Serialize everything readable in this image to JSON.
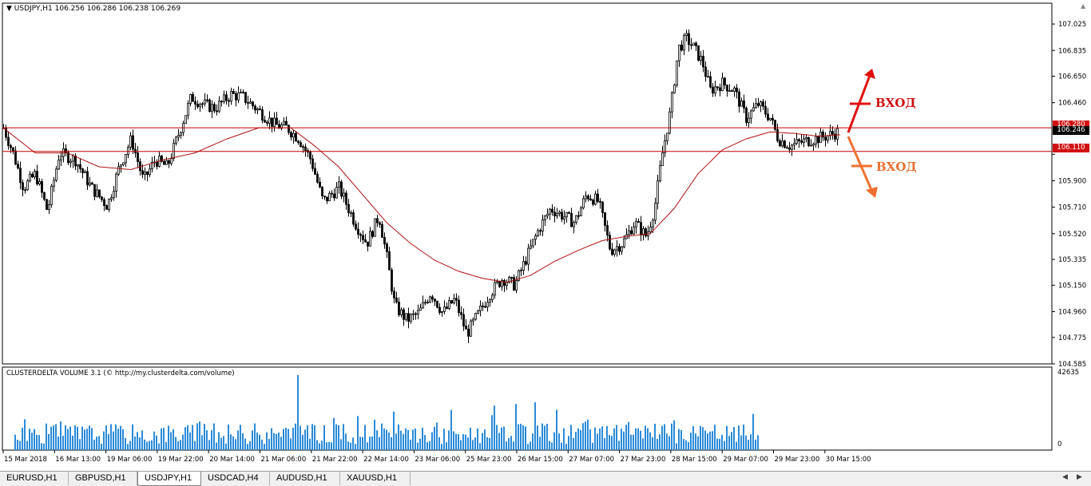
{
  "header": {
    "symbol_line": "USDJPY,H1  106.256 106.286 106.238 106.269"
  },
  "indicator": {
    "title": "CLUSTERDELTA VOLUME 3.1 (© http://my.clusterdelta.com/volume)",
    "max_label": "42635",
    "zero_label": "0"
  },
  "levels": {
    "upper": "106.280",
    "current": "106.246",
    "lower": "106.110"
  },
  "annotations": {
    "up_label": "ВХОД",
    "down_label": "ВХОД",
    "up_color": "#e01010",
    "down_color": "#f07030"
  },
  "tabs": [
    {
      "label": "EURUSD,H1",
      "active": false
    },
    {
      "label": "GBPUSD,H1",
      "active": false
    },
    {
      "label": "USDJPY,H1",
      "active": true
    },
    {
      "label": "USDCAD,H4",
      "active": false
    },
    {
      "label": "AUDUSD,H1",
      "active": false
    },
    {
      "label": "XAUUSD,H1",
      "active": false
    }
  ],
  "colors": {
    "level_line": "#c00000",
    "ma_line": "#b01010",
    "volume_bar": "#2a8ad8",
    "candle": "#000000"
  },
  "chart_data": {
    "type": "candlestick",
    "symbol": "USDJPY",
    "timeframe": "H1",
    "price_axis_labels": [
      "107.025",
      "106.835",
      "106.650",
      "106.460",
      "106.280",
      "106.246",
      "106.110",
      "105.900",
      "105.710",
      "105.520",
      "105.335",
      "105.150",
      "104.960",
      "104.775",
      "104.585"
    ],
    "price_axis_ticks": [
      107.025,
      106.835,
      106.65,
      106.46,
      106.09,
      105.9,
      105.71,
      105.52,
      105.335,
      105.15,
      104.96,
      104.775,
      104.585
    ],
    "ylim": [
      104.585,
      107.1
    ],
    "time_axis_labels": [
      "15 Mar 2018",
      "16 Mar 13:00",
      "19 Mar 06:00",
      "19 Mar 22:00",
      "20 Mar 14:00",
      "21 Mar 06:00",
      "21 Mar 22:00",
      "22 Mar 14:00",
      "23 Mar 06:00",
      "25 Mar 23:00",
      "26 Mar 15:00",
      "27 Mar 07:00",
      "27 Mar 23:00",
      "28 Mar 15:00",
      "29 Mar 07:00",
      "29 Mar 23:00",
      "30 Mar 15:00"
    ],
    "price_path": [
      [
        0,
        106.28
      ],
      [
        12,
        106.1
      ],
      [
        25,
        105.85
      ],
      [
        40,
        105.95
      ],
      [
        55,
        105.68
      ],
      [
        70,
        106.1
      ],
      [
        90,
        106.05
      ],
      [
        110,
        105.85
      ],
      [
        130,
        105.72
      ],
      [
        145,
        106.0
      ],
      [
        160,
        106.2
      ],
      [
        175,
        105.9
      ],
      [
        190,
        106.05
      ],
      [
        205,
        106.0
      ],
      [
        220,
        106.25
      ],
      [
        235,
        106.5
      ],
      [
        250,
        106.45
      ],
      [
        265,
        106.42
      ],
      [
        285,
        106.52
      ],
      [
        300,
        106.5
      ],
      [
        320,
        106.4
      ],
      [
        340,
        106.3
      ],
      [
        355,
        106.28
      ],
      [
        370,
        106.2
      ],
      [
        385,
        106.05
      ],
      [
        400,
        105.75
      ],
      [
        420,
        105.85
      ],
      [
        440,
        105.6
      ],
      [
        455,
        105.45
      ],
      [
        470,
        105.65
      ],
      [
        480,
        105.35
      ],
      [
        490,
        105.0
      ],
      [
        505,
        104.9
      ],
      [
        520,
        104.95
      ],
      [
        535,
        105.1
      ],
      [
        550,
        104.95
      ],
      [
        565,
        105.05
      ],
      [
        580,
        104.8
      ],
      [
        595,
        104.95
      ],
      [
        610,
        105.1
      ],
      [
        625,
        105.2
      ],
      [
        640,
        105.15
      ],
      [
        655,
        105.35
      ],
      [
        670,
        105.55
      ],
      [
        685,
        105.7
      ],
      [
        700,
        105.65
      ],
      [
        715,
        105.6
      ],
      [
        730,
        105.8
      ],
      [
        745,
        105.75
      ],
      [
        760,
        105.4
      ],
      [
        775,
        105.45
      ],
      [
        790,
        105.6
      ],
      [
        805,
        105.5
      ],
      [
        815,
        105.7
      ],
      [
        825,
        106.1
      ],
      [
        835,
        106.4
      ],
      [
        845,
        106.85
      ],
      [
        855,
        106.92
      ],
      [
        865,
        106.85
      ],
      [
        875,
        106.75
      ],
      [
        885,
        106.55
      ],
      [
        900,
        106.6
      ],
      [
        915,
        106.55
      ],
      [
        930,
        106.35
      ],
      [
        945,
        106.45
      ],
      [
        960,
        106.35
      ],
      [
        970,
        106.2
      ],
      [
        985,
        106.15
      ],
      [
        1000,
        106.18
      ],
      [
        1015,
        106.2
      ],
      [
        1030,
        106.22
      ],
      [
        1045,
        106.25
      ]
    ],
    "ma_path": [
      [
        0,
        106.28
      ],
      [
        40,
        106.1
      ],
      [
        80,
        106.1
      ],
      [
        120,
        106.0
      ],
      [
        160,
        105.98
      ],
      [
        200,
        106.05
      ],
      [
        240,
        106.1
      ],
      [
        280,
        106.2
      ],
      [
        320,
        106.28
      ],
      [
        360,
        106.28
      ],
      [
        390,
        106.15
      ],
      [
        420,
        106.0
      ],
      [
        450,
        105.8
      ],
      [
        480,
        105.6
      ],
      [
        510,
        105.45
      ],
      [
        540,
        105.33
      ],
      [
        570,
        105.25
      ],
      [
        600,
        105.2
      ],
      [
        630,
        105.17
      ],
      [
        660,
        105.22
      ],
      [
        690,
        105.32
      ],
      [
        720,
        105.4
      ],
      [
        750,
        105.47
      ],
      [
        780,
        105.5
      ],
      [
        810,
        105.52
      ],
      [
        840,
        105.7
      ],
      [
        870,
        105.95
      ],
      [
        900,
        106.12
      ],
      [
        930,
        106.2
      ],
      [
        960,
        106.25
      ],
      [
        990,
        106.24
      ],
      [
        1020,
        106.22
      ],
      [
        1048,
        106.23
      ]
    ]
  }
}
